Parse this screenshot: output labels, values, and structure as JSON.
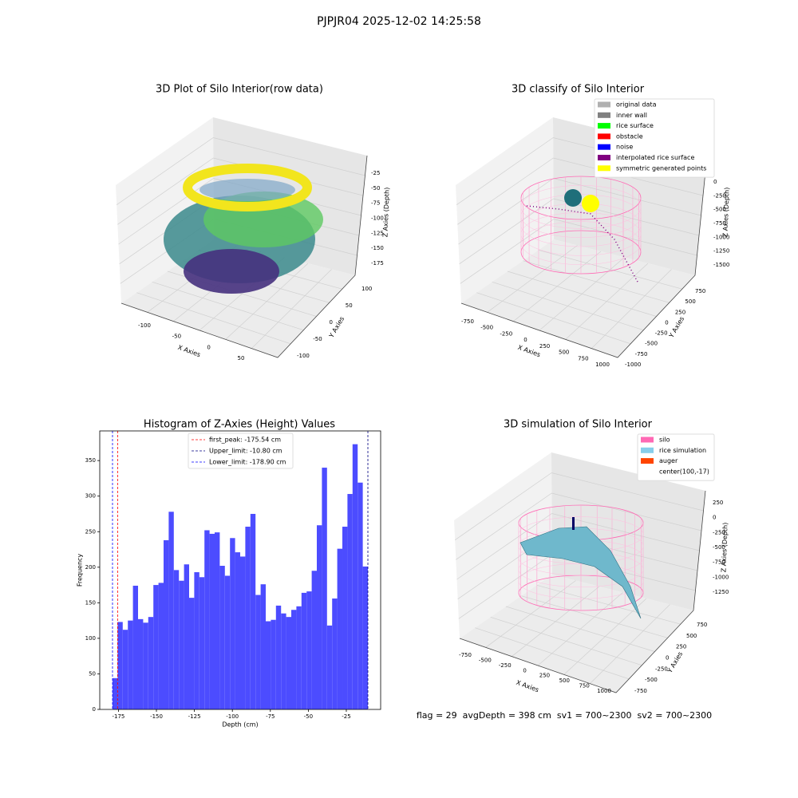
{
  "title": "PJPJR04 2025-12-02 14:25:58",
  "footer": "flag = 29  avgDepth = 398 cm  sv1 = 700~2300  sv2 = 700~2300",
  "chart_data": [
    {
      "type": "scatter3d",
      "title": "3D Plot of Silo Interior(row data)",
      "xlabel": "X Axies",
      "ylabel": "Y Axies",
      "zlabel": "Z Axies (Depth)",
      "xticks": [
        -100,
        -50,
        0,
        50
      ],
      "yticks": [
        -100,
        -50,
        0,
        50,
        100
      ],
      "zticks": [
        -25,
        -50,
        -75,
        -100,
        -125,
        -150,
        -175
      ]
    },
    {
      "type": "scatter3d",
      "title": "3D classify of Silo Interior",
      "xlabel": "X Axies",
      "ylabel": "Y Axies",
      "zlabel": "Z Axies (Depth)",
      "xticks": [
        -750,
        -500,
        -250,
        0,
        250,
        500,
        750,
        1000
      ],
      "yticks": [
        -1000,
        -750,
        -500,
        -250,
        0,
        250,
        500,
        750
      ],
      "zticks": [
        0,
        -250,
        -500,
        -750,
        -1000,
        -1250,
        -1500
      ],
      "legend": [
        {
          "name": "original data",
          "color": "#b0b0b0"
        },
        {
          "name": "inner wall",
          "color": "#808080"
        },
        {
          "name": "rice surface",
          "color": "#00ff00"
        },
        {
          "name": "obstacle",
          "color": "#ff0000"
        },
        {
          "name": "noise",
          "color": "#0000ff"
        },
        {
          "name": "interpolated rice surface",
          "color": "#800080"
        },
        {
          "name": "symmetric generated points",
          "color": "#ffff00"
        }
      ]
    },
    {
      "type": "hist",
      "title": "Histogram of Z-Axies (Height) Values",
      "xlabel": "Depth (cm)",
      "ylabel": "Frequency",
      "color": "#4c4cff",
      "bins": [
        -178.9,
        -175.54,
        -172.18,
        -168.81,
        -165.45,
        -162.09,
        -158.73,
        -155.37,
        -152.0,
        -148.64,
        -145.28,
        -141.92,
        -138.56,
        -135.19,
        -131.83,
        -128.47,
        -125.11,
        -121.75,
        -118.38,
        -115.02,
        -111.66,
        -108.3,
        -104.94,
        -101.57,
        -98.21,
        -94.85,
        -91.49,
        -88.13,
        -84.76,
        -81.4,
        -78.04,
        -74.68,
        -71.32,
        -67.95,
        -64.59,
        -61.23,
        -57.87,
        -54.51,
        -51.14,
        -47.78,
        -44.42,
        -41.06,
        -37.7,
        -34.33,
        -30.97,
        -27.61,
        -24.25,
        -20.89,
        -17.52,
        -14.16,
        -10.8
      ],
      "counts": [
        44,
        123,
        112,
        125,
        174,
        127,
        122,
        130,
        175,
        178,
        238,
        278,
        196,
        181,
        204,
        157,
        193,
        186,
        252,
        247,
        249,
        202,
        188,
        241,
        221,
        215,
        257,
        275,
        161,
        176,
        124,
        126,
        146,
        135,
        130,
        140,
        145,
        164,
        166,
        195,
        259,
        340,
        118,
        156,
        226,
        257,
        303,
        373,
        319,
        201
      ],
      "xlim": [
        -187.3,
        -2.4
      ],
      "ylim": [
        0,
        391.7
      ],
      "xticks": [
        -175,
        -150,
        -125,
        -100,
        -75,
        -50,
        -25
      ],
      "yticks": [
        0,
        50,
        100,
        150,
        200,
        250,
        300,
        350
      ],
      "vlines": [
        {
          "name": "first_peak: -175.54 cm",
          "value": -175.54,
          "color": "#ff0000"
        },
        {
          "name": "Upper_limit: -10.80 cm",
          "value": -10.8,
          "color": "#000080"
        },
        {
          "name": "Lower_limit: -178.90 cm",
          "value": -178.9,
          "color": "#0000ff"
        }
      ]
    },
    {
      "type": "surface3d",
      "title": "3D simulation of Silo Interior",
      "xlabel": "X Axies",
      "ylabel": "Y Axies",
      "zlabel": "Z Axies (Depth)",
      "xticks": [
        -750,
        -500,
        -250,
        0,
        250,
        500,
        750,
        1000
      ],
      "yticks": [
        -750,
        -500,
        -250,
        0,
        250,
        500,
        750
      ],
      "zticks": [
        250,
        0,
        -250,
        -500,
        -750,
        -1000,
        -1250
      ],
      "legend": [
        {
          "name": "silo",
          "color": "#ff69b4"
        },
        {
          "name": "rice simulation",
          "color": "#87ceeb"
        },
        {
          "name": "auger",
          "color": "#ff4500"
        },
        {
          "name": "center(100,-17)",
          "color": "#ffffff"
        }
      ]
    }
  ]
}
